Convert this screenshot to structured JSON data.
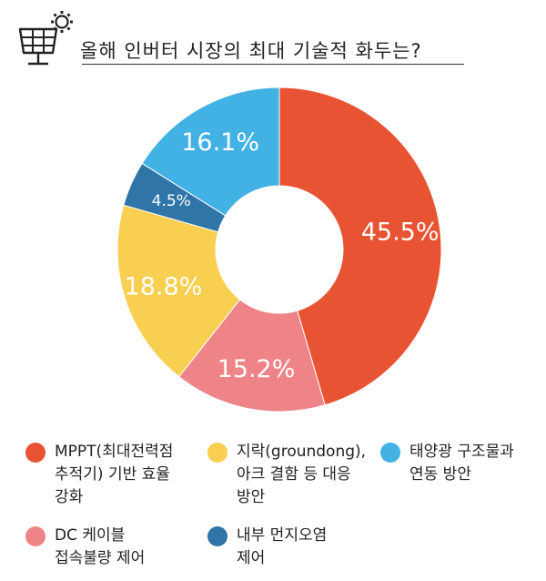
{
  "header": {
    "title": "올해 인버터 시장의 최대 기술적 화두는?",
    "icon": "solar-panel-gear-icon"
  },
  "chart_data": {
    "type": "pie",
    "donut": true,
    "title": "올해 인버터 시장의 최대 기술적 화두는?",
    "categories": [
      "MPPT(최대전력점 추적기) 기반 효율 강화",
      "DC 케이블 접속불량 제어",
      "지락(groundong), 아크 결함 등 대응 방안",
      "내부 먼지오염 제어",
      "태양광 구조물과 연동 방안"
    ],
    "values": [
      45.5,
      15.2,
      18.8,
      4.5,
      16.1
    ],
    "labels": [
      "45.5%",
      "15.2%",
      "18.8%",
      "4.5%",
      "16.1%"
    ],
    "colors": [
      "#e85433",
      "#ef8488",
      "#f8cf50",
      "#2f75a8",
      "#41b2e3"
    ],
    "legend_position": "bottom"
  },
  "legend": {
    "items": [
      {
        "lines": [
          "MPPT(최대전력점",
          "추적기) 기반 효율",
          "강화"
        ],
        "color": "#e85433"
      },
      {
        "lines": [
          "지락(groundong),",
          "아크 결함 등 대응",
          "방안"
        ],
        "color": "#f8cf50"
      },
      {
        "lines": [
          "태양광 구조물과",
          "연동 방안"
        ],
        "color": "#41b2e3"
      },
      {
        "lines": [
          "DC 케이블",
          "접속불량 제어"
        ],
        "color": "#ef8488"
      },
      {
        "lines": [
          "내부 먼지오염",
          "제어"
        ],
        "color": "#2f75a8"
      }
    ]
  }
}
